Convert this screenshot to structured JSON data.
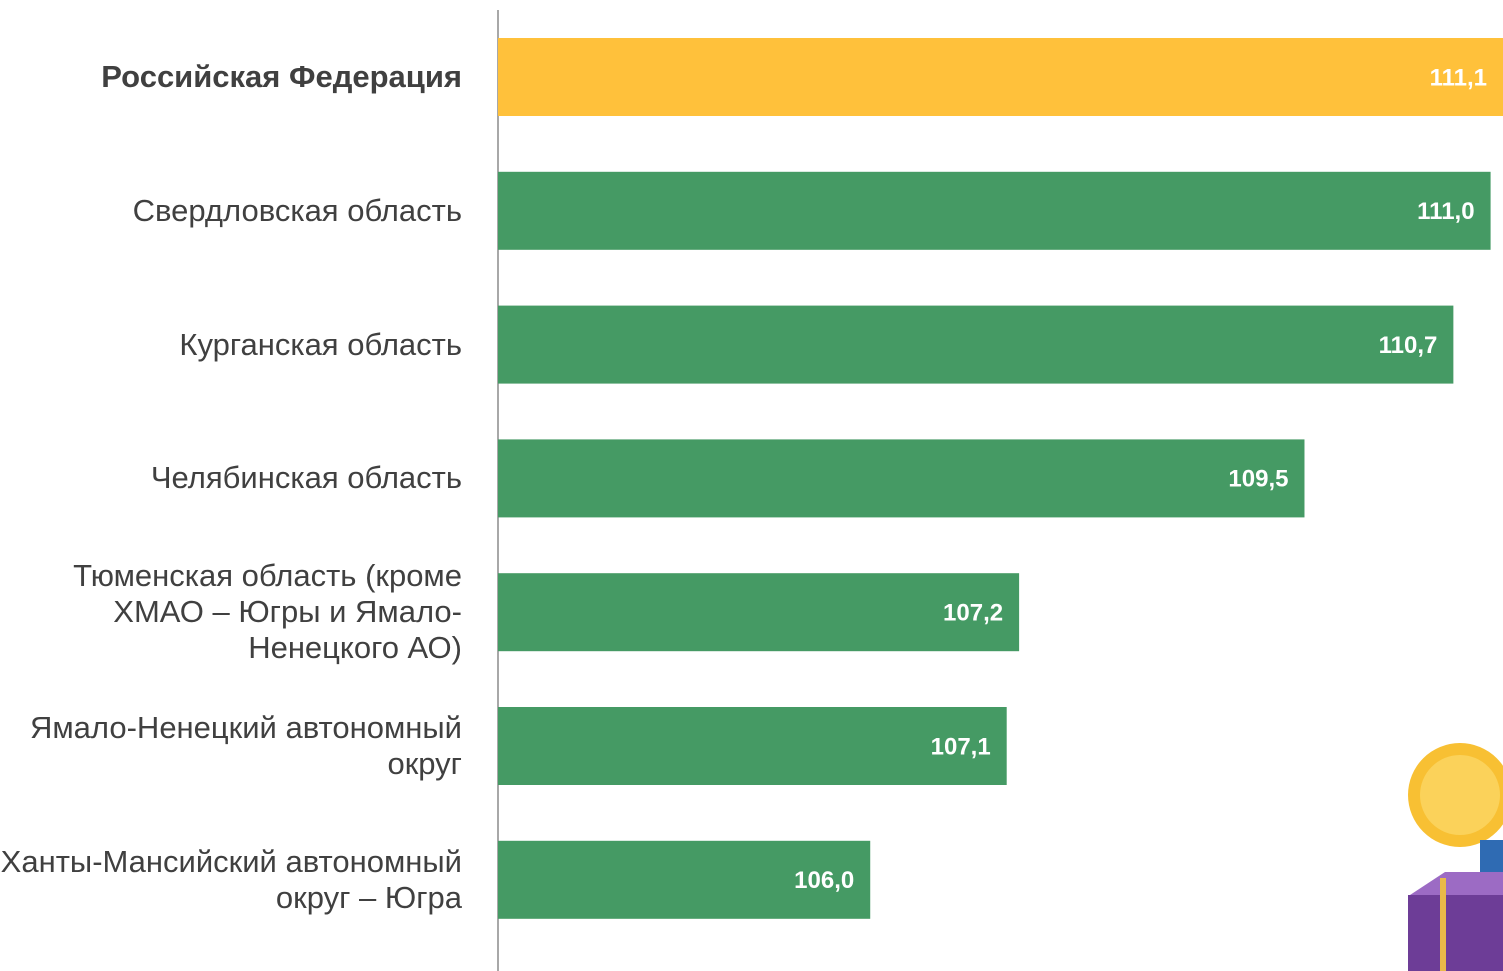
{
  "chart_data": {
    "type": "barh",
    "categories": [
      "Российская Федерация",
      "Свердловская область",
      "Курганская область",
      "Челябинская область",
      "Тюменская область (кроме ХМАО – Югры и Ямало-Ненецкого АО)",
      "Ямало-Ненецкий автономный округ",
      "Ханты-Мансийский автономный округ – Югра"
    ],
    "values": [
      111.1,
      111.0,
      110.7,
      109.5,
      107.2,
      107.1,
      106.0
    ],
    "value_labels": [
      "111,1",
      "111,0",
      "110,7",
      "109,5",
      "107,2",
      "107,1",
      "106,0"
    ],
    "colors": [
      "#ffc13b",
      "#459a64",
      "#459a64",
      "#459a64",
      "#459a64",
      "#459a64",
      "#459a64"
    ],
    "highlight_index": 0,
    "xlim": [
      103,
      111.1
    ]
  }
}
